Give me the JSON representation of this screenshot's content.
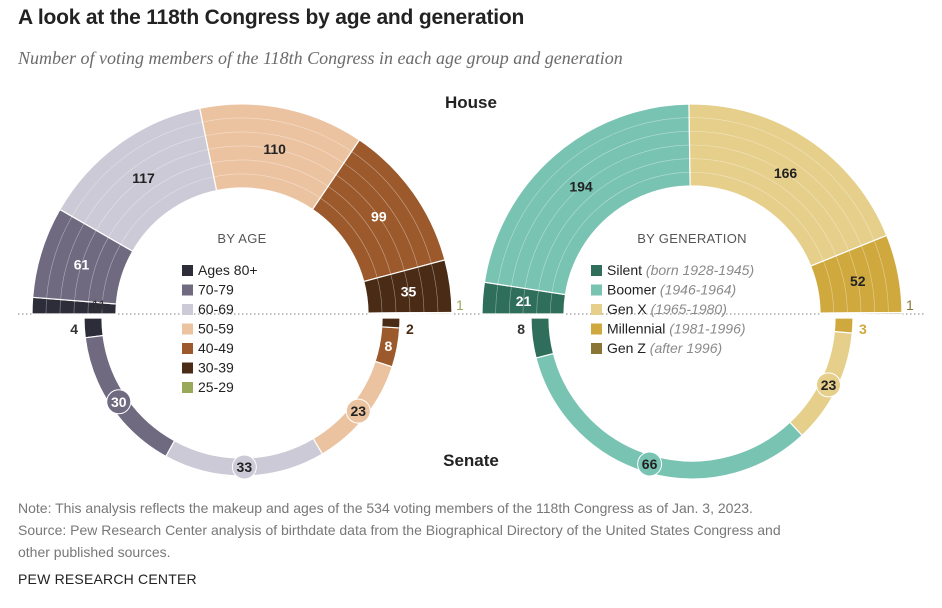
{
  "title": "A look at the 118th Congress by age and generation",
  "subtitle": "Number of voting members of the 118th Congress in each age group and generation",
  "note": "Note: This analysis reflects the makeup and ages of the 534 voting members of the 118th Congress as of Jan. 3, 2023.",
  "source_line1": "Source: Pew Research Center analysis of birthdate data from the Biographical Directory of the United States Congress and",
  "source_line2": "other published sources.",
  "brand": "PEW RESEARCH CENTER",
  "chart_data": [
    {
      "type": "semicircle-unit",
      "panel": "age",
      "legend_title": "BY AGE",
      "chamber_labels": [
        "House",
        "Senate"
      ],
      "categories": [
        "Ages 80+",
        "70-79",
        "60-69",
        "50-59",
        "40-49",
        "30-39",
        "25-29"
      ],
      "colors": [
        "#2d2d3a",
        "#6f6a80",
        "#cccad6",
        "#ecc3a1",
        "#9c5a2c",
        "#4a2c16",
        "#9aa85a"
      ],
      "house": [
        11,
        61,
        117,
        110,
        99,
        35,
        1
      ],
      "senate": [
        4,
        30,
        33,
        23,
        8,
        2,
        0
      ]
    },
    {
      "type": "semicircle-unit",
      "panel": "generation",
      "legend_title": "BY GENERATION",
      "categories": [
        "Silent",
        "Boomer",
        "Gen X",
        "Millennial",
        "Gen Z"
      ],
      "category_notes": [
        "(born 1928-1945)",
        "(1946-1964)",
        "(1965-1980)",
        "(1981-1996)",
        "(after 1996)"
      ],
      "colors": [
        "#2f6e5a",
        "#79c3b3",
        "#e5cf8a",
        "#d0a93e",
        "#8a7535"
      ],
      "house": [
        21,
        194,
        166,
        52,
        1
      ],
      "senate": [
        8,
        66,
        23,
        3,
        0
      ]
    }
  ]
}
